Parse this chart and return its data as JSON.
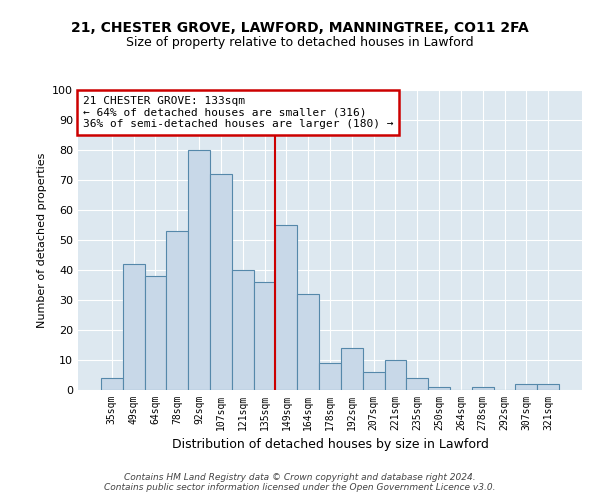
{
  "title1": "21, CHESTER GROVE, LAWFORD, MANNINGTREE, CO11 2FA",
  "title2": "Size of property relative to detached houses in Lawford",
  "xlabel": "Distribution of detached houses by size in Lawford",
  "ylabel": "Number of detached properties",
  "bin_labels": [
    "35sqm",
    "49sqm",
    "64sqm",
    "78sqm",
    "92sqm",
    "107sqm",
    "121sqm",
    "135sqm",
    "149sqm",
    "164sqm",
    "178sqm",
    "192sqm",
    "207sqm",
    "221sqm",
    "235sqm",
    "250sqm",
    "264sqm",
    "278sqm",
    "292sqm",
    "307sqm",
    "321sqm"
  ],
  "bar_heights": [
    4,
    42,
    38,
    53,
    80,
    72,
    40,
    36,
    55,
    32,
    9,
    14,
    6,
    10,
    4,
    1,
    0,
    1,
    0,
    2,
    2
  ],
  "bar_color": "#c8d8e8",
  "bar_edge_color": "#5588aa",
  "vline_pos": 7.5,
  "vline_color": "#cc0000",
  "annotation_text": "21 CHESTER GROVE: 133sqm\n← 64% of detached houses are smaller (316)\n36% of semi-detached houses are larger (180) →",
  "annotation_box_color": "#cc0000",
  "ylim": [
    0,
    100
  ],
  "yticks": [
    0,
    10,
    20,
    30,
    40,
    50,
    60,
    70,
    80,
    90,
    100
  ],
  "footer": "Contains HM Land Registry data © Crown copyright and database right 2024.\nContains public sector information licensed under the Open Government Licence v3.0.",
  "bg_color": "#dde8f0",
  "fig_bg_color": "#ffffff"
}
